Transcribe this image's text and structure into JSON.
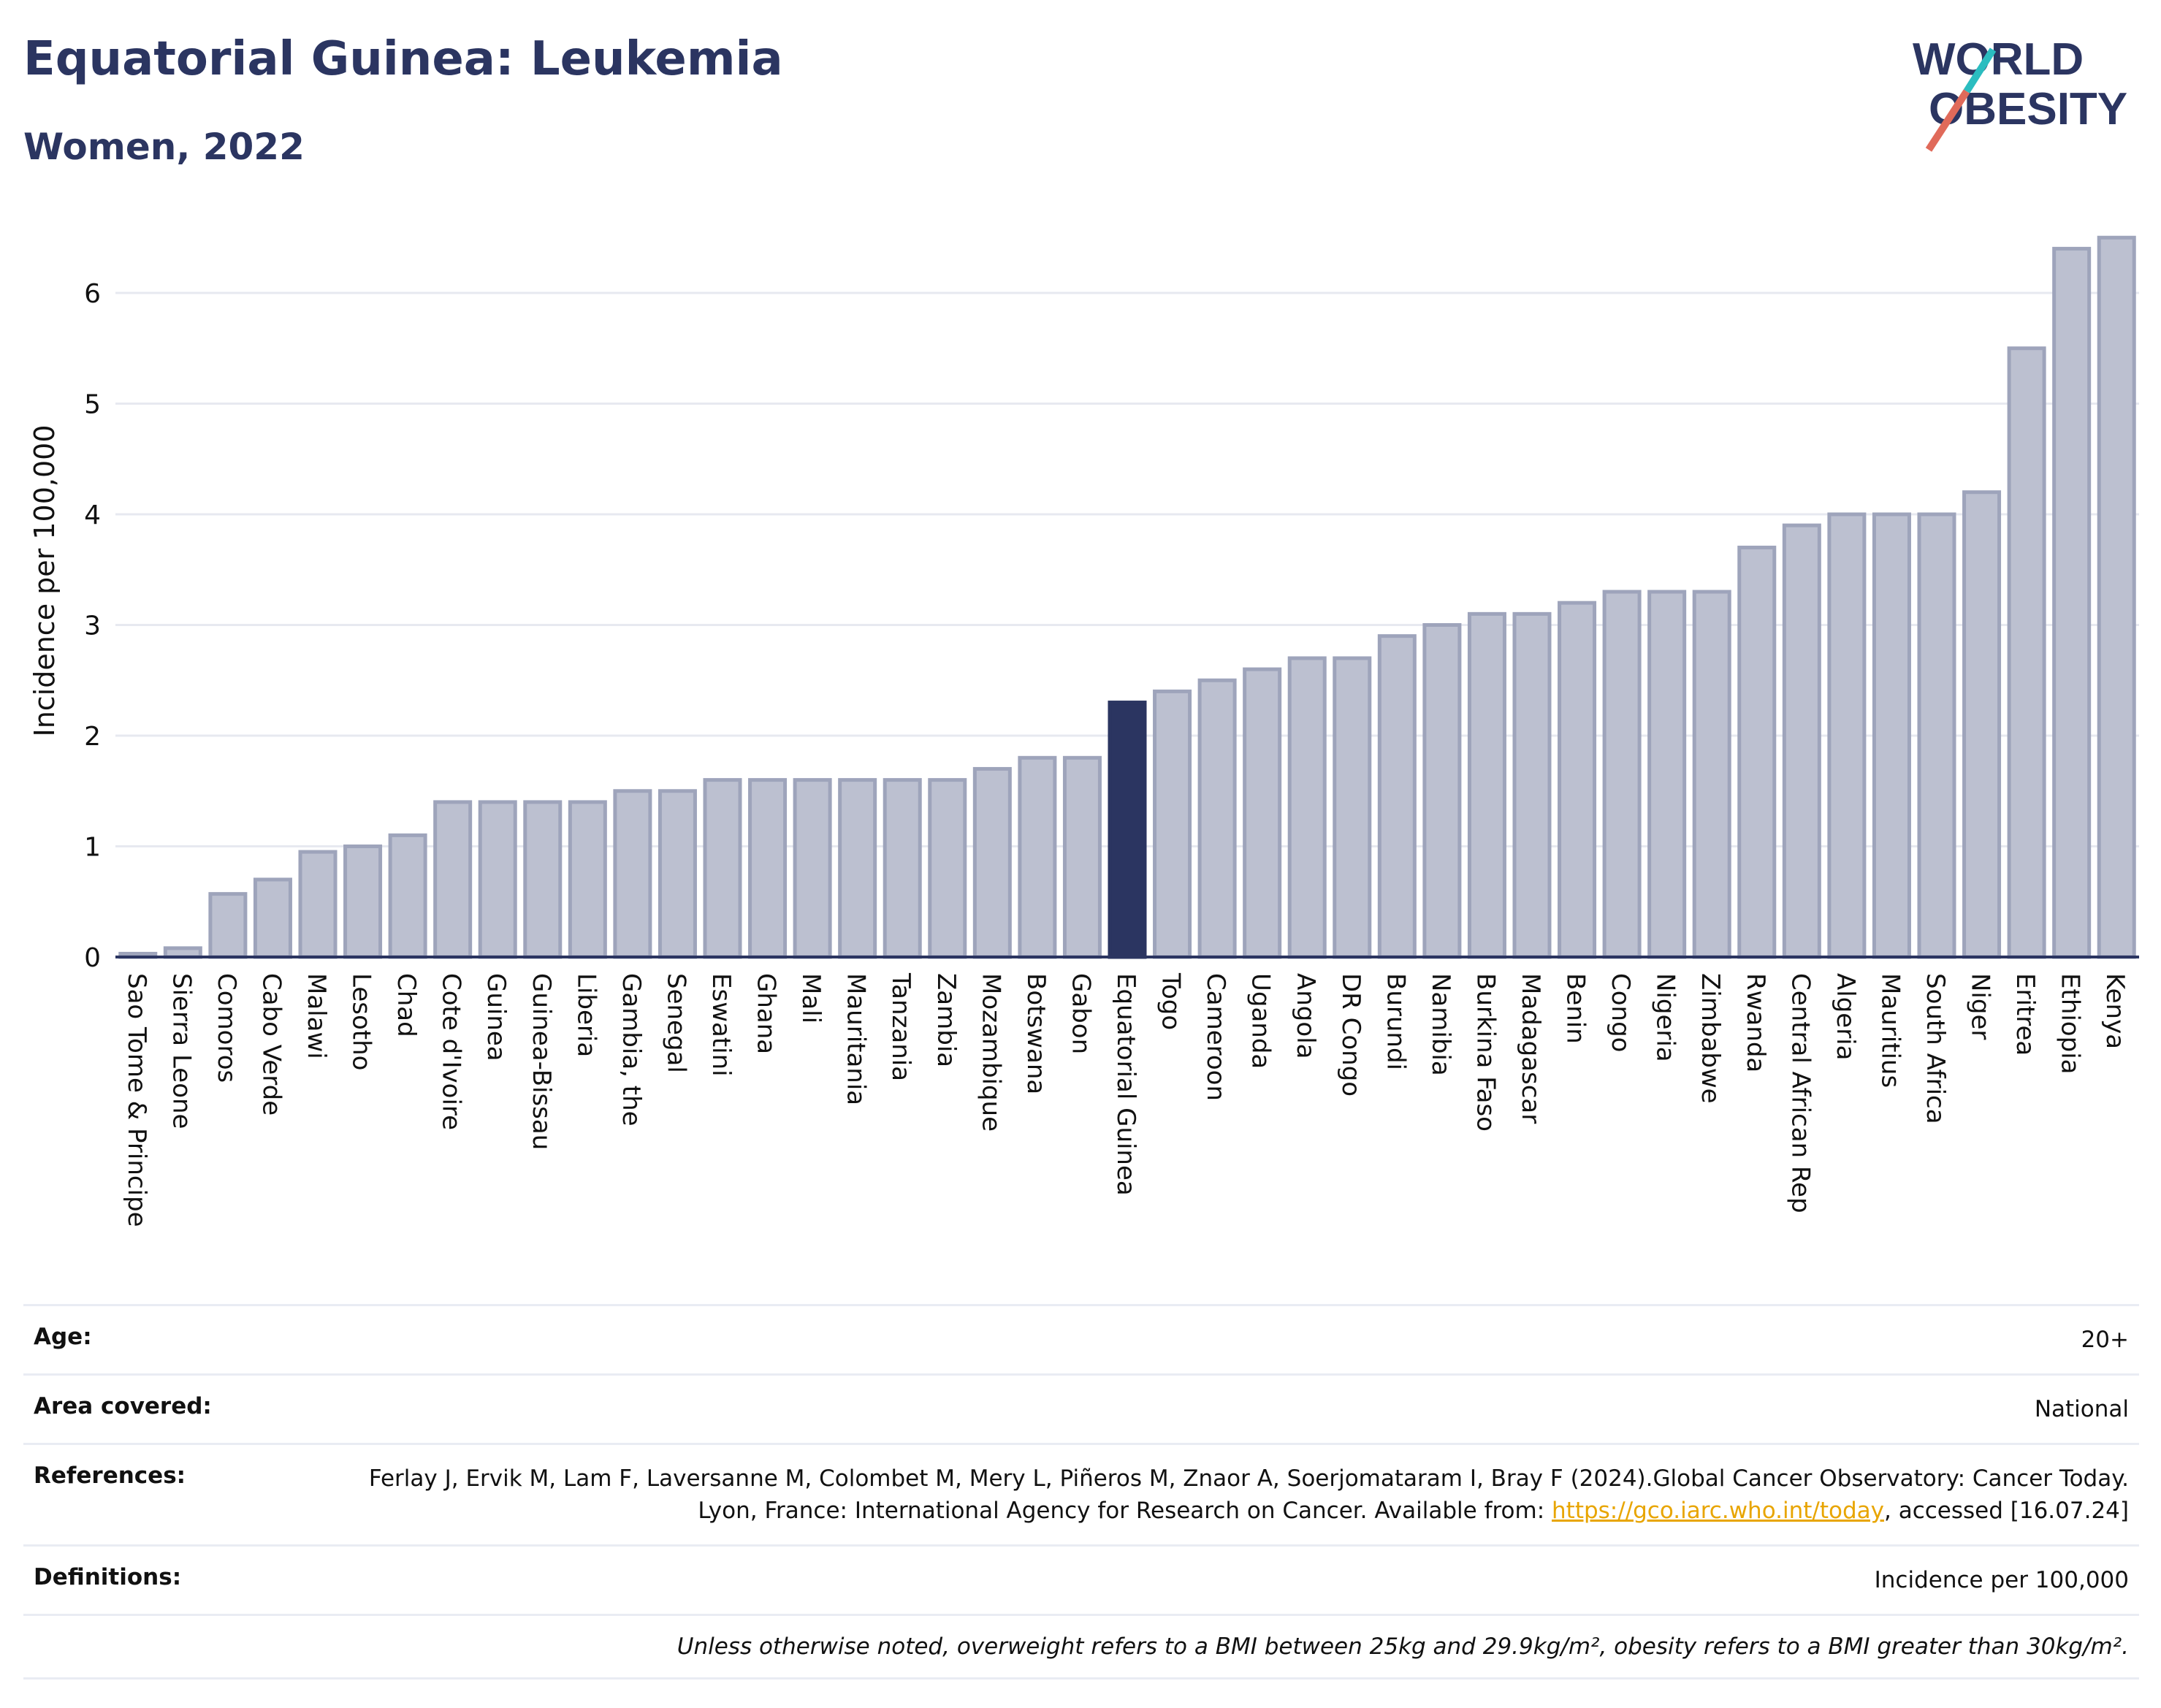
{
  "header": {
    "title": "Equatorial Guinea: Leukemia",
    "subtitle": "Women, 2022"
  },
  "logo": {
    "line1": "WORLD",
    "line2": "OBESITY"
  },
  "chart_data": {
    "type": "bar",
    "ylabel": "Incidence per 100,000",
    "ylim": [
      0,
      6.6
    ],
    "yticks": [
      0,
      1,
      2,
      3,
      4,
      5,
      6
    ],
    "grid": true,
    "highlight": "Equatorial Guinea",
    "colors": {
      "bar": "#bcc0d0",
      "bar_edge": "#9ea4bb",
      "highlight": "#2b3561"
    },
    "categories": [
      "Sao Tome & Principe",
      "Sierra Leone",
      "Comoros",
      "Cabo Verde",
      "Malawi",
      "Lesotho",
      "Chad",
      "Cote d'Ivoire",
      "Guinea",
      "Guinea-Bissau",
      "Liberia",
      "Gambia, the",
      "Senegal",
      "Eswatini",
      "Ghana",
      "Mali",
      "Mauritania",
      "Tanzania",
      "Zambia",
      "Mozambique",
      "Botswana",
      "Gabon",
      "Equatorial Guinea",
      "Togo",
      "Cameroon",
      "Uganda",
      "Angola",
      "DR Congo",
      "Burundi",
      "Namibia",
      "Burkina Faso",
      "Madagascar",
      "Benin",
      "Congo",
      "Nigeria",
      "Zimbabwe",
      "Rwanda",
      "Central African Rep",
      "Algeria",
      "Mauritius",
      "South Africa",
      "Niger",
      "Eritrea",
      "Ethiopia",
      "Kenya"
    ],
    "values": [
      0.03,
      0.08,
      0.57,
      0.7,
      0.95,
      1.0,
      1.1,
      1.4,
      1.4,
      1.4,
      1.4,
      1.5,
      1.5,
      1.6,
      1.6,
      1.6,
      1.6,
      1.6,
      1.6,
      1.7,
      1.8,
      1.8,
      2.3,
      2.4,
      2.5,
      2.6,
      2.7,
      2.7,
      2.9,
      3.0,
      3.1,
      3.1,
      3.2,
      3.3,
      3.3,
      3.3,
      3.7,
      3.9,
      4.0,
      4.0,
      4.0,
      4.2,
      5.5,
      6.4,
      6.5
    ]
  },
  "info": {
    "age_label": "Age:",
    "age_value": "20+",
    "area_label": "Area covered:",
    "area_value": "National",
    "references_label": "References:",
    "references_text": "Ferlay J, Ervik M, Lam F, Laversanne M, Colombet M, Mery L, Piñeros M, Znaor A, Soerjomataram I, Bray F (2024).Global Cancer Observatory: Cancer Today. Lyon, France: International Agency for Research on Cancer. Available from: ",
    "references_link": "https://gco.iarc.who.int/today",
    "references_tail": ", accessed [16.07.24]",
    "definitions_label": "Definitions:",
    "definitions_value": "Incidence per 100,000",
    "note": "Unless otherwise noted, overweight refers to a BMI between 25kg and 29.9kg/m², obesity refers to a BMI greater than 30kg/m²."
  }
}
